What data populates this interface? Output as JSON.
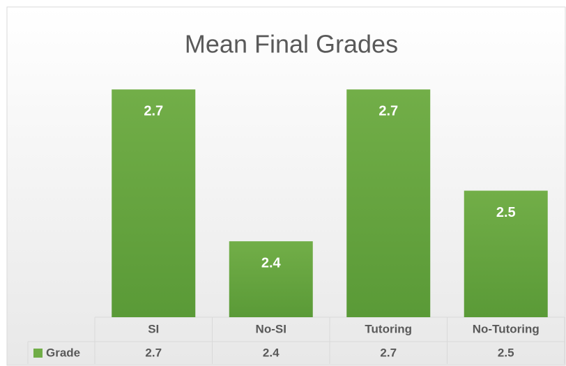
{
  "chart_data": {
    "type": "bar",
    "title": "Mean Final Grades",
    "categories": [
      "SI",
      "No-SI",
      "Tutoring",
      "No-Tutoring"
    ],
    "series": [
      {
        "name": "Grade",
        "color": "#70ad47",
        "values": [
          2.7,
          2.4,
          2.7,
          2.5
        ]
      }
    ],
    "ylim": [
      2.25,
      2.75
    ],
    "data_table": true
  }
}
